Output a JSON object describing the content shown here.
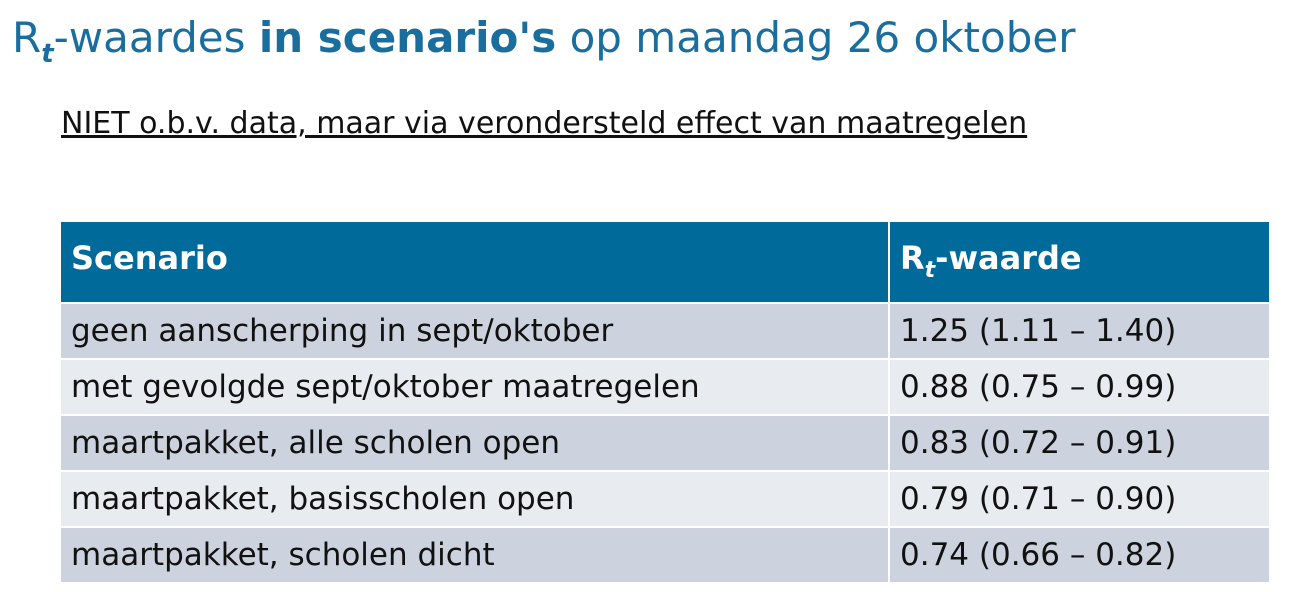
{
  "title": {
    "r": "R",
    "sub": "t",
    "part1": "-waardes ",
    "bold": "in scenario's",
    "part2": " op maandag 26 oktober"
  },
  "subtitle": "NIET o.b.v. data, maar via verondersteld effect van maatregelen",
  "table": {
    "header": {
      "scenario": "Scenario",
      "r": "R",
      "r_sub": "t",
      "r_suffix": "-waarde"
    },
    "rows": [
      {
        "scenario": "geen aanscherping in sept/oktober",
        "value": "1.25 (1.11 – 1.40)"
      },
      {
        "scenario": "met gevolgde sept/oktober maatregelen",
        "value": "0.88 (0.75 – 0.99)"
      },
      {
        "scenario": "maartpakket, alle scholen open",
        "value": "0.83 (0.72 – 0.91)"
      },
      {
        "scenario": "maartpakket, basisscholen open",
        "value": "0.79 (0.71 – 0.90)"
      },
      {
        "scenario": "maartpakket, scholen dicht",
        "value": "0.74 (0.66 – 0.82)"
      }
    ]
  },
  "colors": {
    "title": "#1a6e9e",
    "header_bg": "#006a9a",
    "row_odd": "#cdd3de",
    "row_even": "#e8ebf0"
  }
}
